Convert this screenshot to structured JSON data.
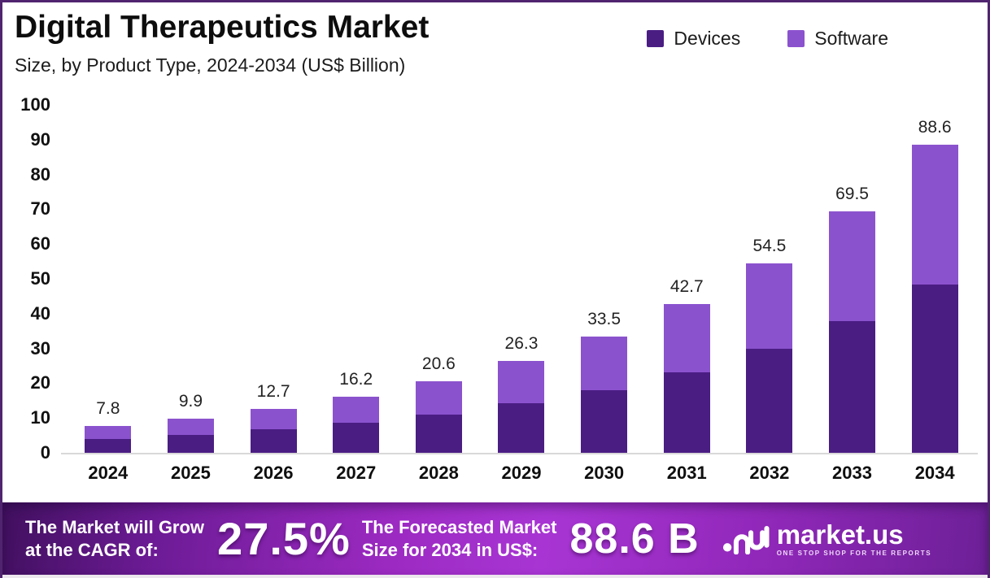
{
  "header": {
    "title": "Digital Therapeutics Market",
    "subtitle": "Size, by Product Type, 2024-2034 (US$ Billion)"
  },
  "legend": {
    "items": [
      {
        "label": "Devices"
      },
      {
        "label": "Software"
      }
    ]
  },
  "chart_data": {
    "type": "bar",
    "stacked": true,
    "title": "Digital Therapeutics Market",
    "subtitle": "Size, by Product Type, 2024-2034 (US$ Billion)",
    "categories": [
      "2024",
      "2025",
      "2026",
      "2027",
      "2028",
      "2029",
      "2030",
      "2031",
      "2032",
      "2033",
      "2034"
    ],
    "series": [
      {
        "name": "Devices",
        "color": "#4a1d83",
        "values": [
          3.9,
          5.1,
          6.7,
          8.6,
          11.0,
          14.2,
          18.0,
          23.1,
          29.8,
          37.9,
          48.4
        ]
      },
      {
        "name": "Software",
        "color": "#8b52ce",
        "values": [
          3.9,
          4.8,
          6.0,
          7.6,
          9.6,
          12.1,
          15.5,
          19.6,
          24.7,
          31.6,
          40.2
        ]
      }
    ],
    "totals": [
      "7.8",
      "9.9",
      "12.7",
      "16.2",
      "20.6",
      "26.3",
      "33.5",
      "42.7",
      "54.5",
      "69.5",
      "88.6"
    ],
    "ylabel": "",
    "xlabel": "",
    "ylim": [
      0,
      100
    ],
    "yticks": [
      0,
      10,
      20,
      30,
      40,
      50,
      60,
      70,
      80,
      90,
      100
    ],
    "grid": false,
    "legend_position": "top-right"
  },
  "banner": {
    "cagr_line1": "The Market will Grow",
    "cagr_line2": "at the CAGR of:",
    "cagr_value": "27.5%",
    "forecast_line1": "The Forecasted Market",
    "forecast_line2": "Size for 2034 in US$:",
    "forecast_value": "88.6 B",
    "brand": "market.us",
    "tagline": "ONE STOP SHOP FOR THE REPORTS"
  },
  "colors": {
    "devices": "#4a1d83",
    "software": "#8b52ce",
    "border": "#50246f",
    "banner_mid": "#a32cc9",
    "banner_edge": "#41105f"
  }
}
